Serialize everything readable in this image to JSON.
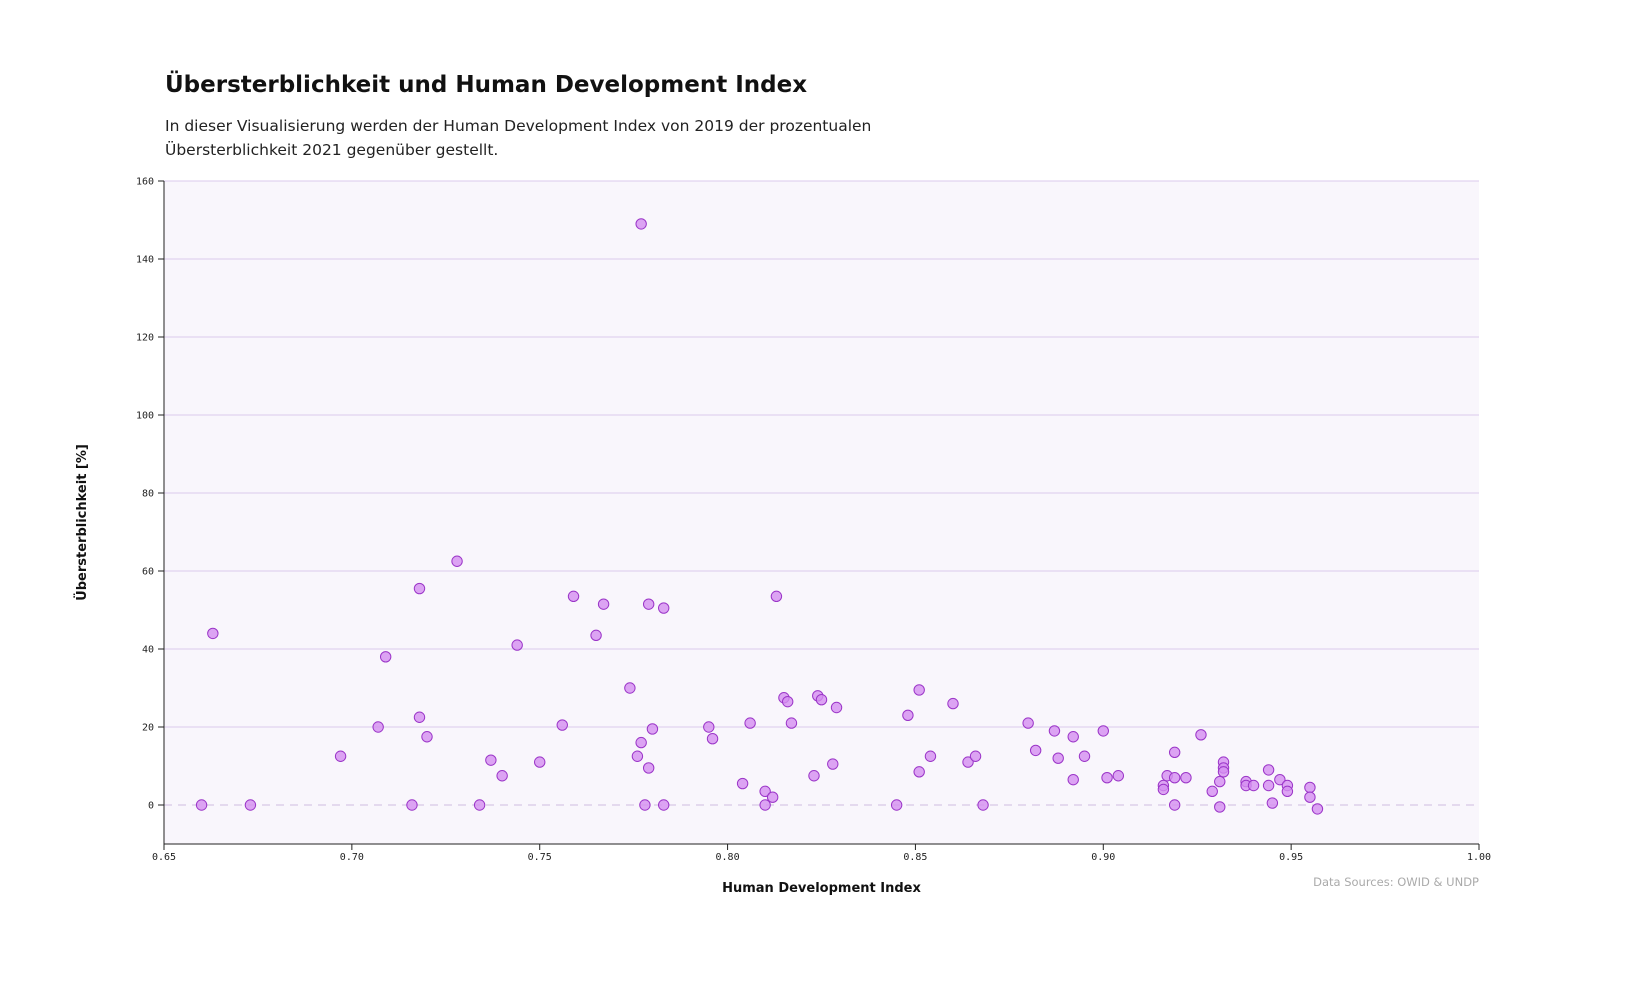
{
  "header": {
    "title": "Übersterblichkeit und Human Development Index",
    "subtitle": "In dieser Visualisierung werden der Human Development Index von 2019 der prozentualen Übersterblichkeit 2021 gegenüber gestellt."
  },
  "source": "Data Sources: OWID & UNDP",
  "colors": {
    "plot_bg": "#f9f6fc",
    "grid": "#e2d3f0",
    "point_fill": "#d58ef0",
    "point_stroke": "#9b35c8",
    "zero_line": "#d8c8e6"
  },
  "chart_data": {
    "type": "scatter",
    "xlabel": "Human Development Index",
    "ylabel": "Übersterblichkeit [%]",
    "xlim": [
      0.65,
      1.0
    ],
    "ylim": [
      -10,
      160
    ],
    "xticks": [
      "0.65",
      "0.70",
      "0.75",
      "0.80",
      "0.85",
      "0.90",
      "0.95",
      "1.00"
    ],
    "yticks": [
      "0",
      "20",
      "40",
      "60",
      "80",
      "100",
      "120",
      "140",
      "160"
    ],
    "grid": "horizontal",
    "points": [
      [
        0.777,
        149
      ],
      [
        0.663,
        44
      ],
      [
        0.66,
        0
      ],
      [
        0.673,
        0
      ],
      [
        0.697,
        12.5
      ],
      [
        0.707,
        20
      ],
      [
        0.709,
        38
      ],
      [
        0.718,
        55.5
      ],
      [
        0.718,
        22.5
      ],
      [
        0.72,
        17.5
      ],
      [
        0.716,
        0
      ],
      [
        0.728,
        62.5
      ],
      [
        0.734,
        0
      ],
      [
        0.737,
        11.5
      ],
      [
        0.74,
        7.5
      ],
      [
        0.744,
        41
      ],
      [
        0.75,
        11
      ],
      [
        0.756,
        20.5
      ],
      [
        0.759,
        53.5
      ],
      [
        0.765,
        43.5
      ],
      [
        0.767,
        51.5
      ],
      [
        0.774,
        30
      ],
      [
        0.776,
        12.5
      ],
      [
        0.777,
        16
      ],
      [
        0.778,
        0
      ],
      [
        0.779,
        51.5
      ],
      [
        0.779,
        9.5
      ],
      [
        0.78,
        19.5
      ],
      [
        0.783,
        50.5
      ],
      [
        0.783,
        0
      ],
      [
        0.795,
        20
      ],
      [
        0.796,
        17
      ],
      [
        0.804,
        5.5
      ],
      [
        0.806,
        21
      ],
      [
        0.81,
        3.5
      ],
      [
        0.81,
        0
      ],
      [
        0.812,
        2
      ],
      [
        0.813,
        53.5
      ],
      [
        0.815,
        27.5
      ],
      [
        0.816,
        26.5
      ],
      [
        0.817,
        21
      ],
      [
        0.823,
        7.5
      ],
      [
        0.824,
        28
      ],
      [
        0.825,
        27
      ],
      [
        0.828,
        10.5
      ],
      [
        0.829,
        25
      ],
      [
        0.845,
        0
      ],
      [
        0.848,
        23
      ],
      [
        0.851,
        29.5
      ],
      [
        0.851,
        8.5
      ],
      [
        0.854,
        12.5
      ],
      [
        0.86,
        26
      ],
      [
        0.864,
        11
      ],
      [
        0.866,
        12.5
      ],
      [
        0.868,
        0
      ],
      [
        0.88,
        21
      ],
      [
        0.882,
        14
      ],
      [
        0.887,
        19
      ],
      [
        0.888,
        12
      ],
      [
        0.892,
        17.5
      ],
      [
        0.892,
        6.5
      ],
      [
        0.895,
        12.5
      ],
      [
        0.9,
        19
      ],
      [
        0.901,
        7
      ],
      [
        0.904,
        7.5
      ],
      [
        0.916,
        5
      ],
      [
        0.916,
        4
      ],
      [
        0.917,
        7.5
      ],
      [
        0.919,
        13.5
      ],
      [
        0.919,
        7
      ],
      [
        0.919,
        0
      ],
      [
        0.922,
        7
      ],
      [
        0.926,
        18
      ],
      [
        0.929,
        3.5
      ],
      [
        0.931,
        6
      ],
      [
        0.931,
        -0.5
      ],
      [
        0.932,
        11
      ],
      [
        0.932,
        9.5
      ],
      [
        0.932,
        8.5
      ],
      [
        0.938,
        6
      ],
      [
        0.938,
        5
      ],
      [
        0.94,
        5
      ],
      [
        0.944,
        9
      ],
      [
        0.944,
        5
      ],
      [
        0.945,
        0.5
      ],
      [
        0.947,
        6.5
      ],
      [
        0.949,
        5
      ],
      [
        0.949,
        3.5
      ],
      [
        0.955,
        4.5
      ],
      [
        0.955,
        2
      ],
      [
        0.957,
        -1
      ]
    ]
  }
}
